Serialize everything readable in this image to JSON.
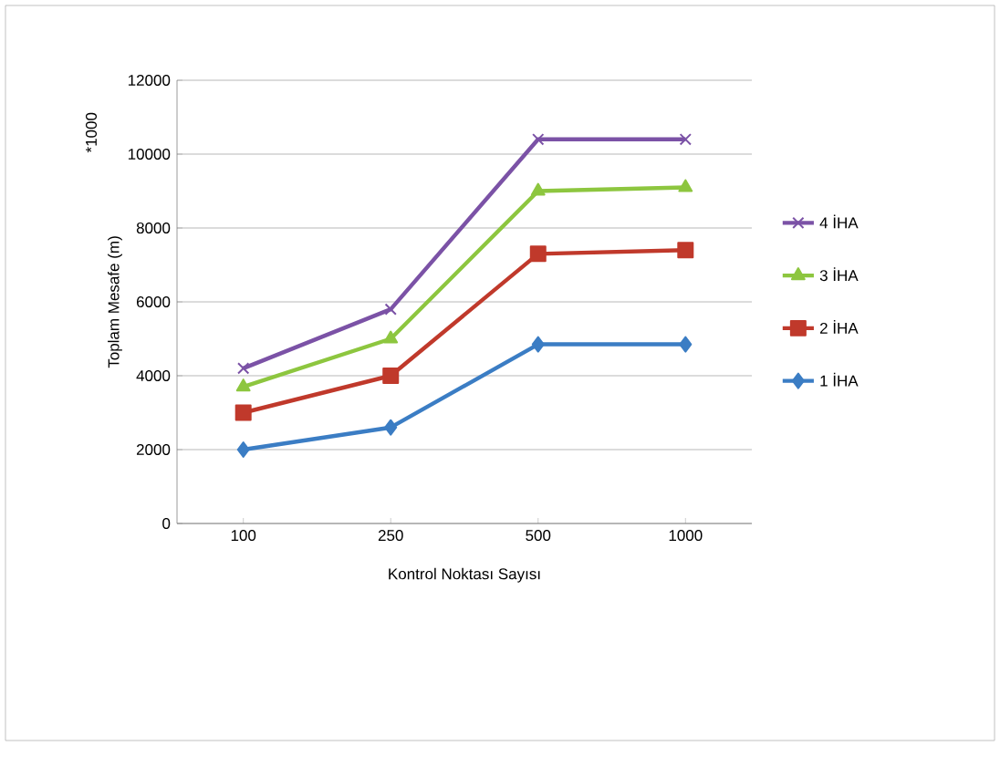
{
  "chart_data": {
    "type": "line",
    "xlabel": "Kontrol Noktası Sayısı",
    "ylabel": "Toplam Mesafe (m)",
    "annotations": [
      "*1000"
    ],
    "categories": [
      "100",
      "250",
      "500",
      "1000"
    ],
    "series": [
      {
        "name": "4 İHA",
        "color": "#7b52a6",
        "marker": "cross",
        "values": [
          4200,
          5800,
          10400,
          10400
        ]
      },
      {
        "name": "3 İHA",
        "color": "#8dc63f",
        "marker": "triangle",
        "values": [
          3700,
          5000,
          9000,
          9100
        ]
      },
      {
        "name": "2 İHA",
        "color": "#c0392b",
        "marker": "square",
        "values": [
          3000,
          4000,
          7300,
          7400
        ]
      },
      {
        "name": "1 İHA",
        "color": "#3b7dc4",
        "marker": "diamond",
        "values": [
          2000,
          2600,
          4850,
          4850
        ]
      }
    ],
    "ylim": [
      0,
      12000
    ],
    "yticks": [
      0,
      2000,
      4000,
      6000,
      8000,
      10000,
      12000
    ],
    "grid": "y",
    "legend": "right",
    "line_style": "solid"
  }
}
